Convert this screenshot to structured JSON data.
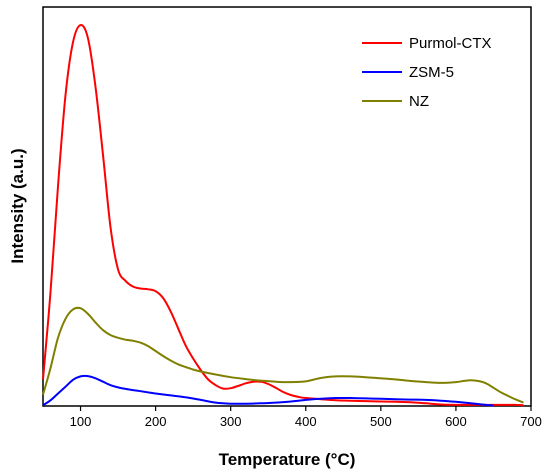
{
  "chart_data": {
    "type": "line",
    "xlabel": "Temperature (°C)",
    "ylabel": "Intensity (a.u.)",
    "xlim": [
      50,
      700
    ],
    "ylim": [
      0,
      100
    ],
    "xticks": [
      100,
      200,
      300,
      400,
      500,
      600,
      700
    ],
    "grid": false,
    "legend_position": "top-right",
    "series": [
      {
        "name": "Purmol-CTX",
        "color": "#ff0000",
        "points": [
          [
            50,
            7
          ],
          [
            60,
            30
          ],
          [
            70,
            58
          ],
          [
            80,
            82
          ],
          [
            90,
            96
          ],
          [
            100,
            100.5
          ],
          [
            110,
            97
          ],
          [
            120,
            84
          ],
          [
            130,
            66
          ],
          [
            140,
            47
          ],
          [
            150,
            36
          ],
          [
            160,
            33
          ],
          [
            170,
            31.5
          ],
          [
            180,
            31
          ],
          [
            190,
            30.8
          ],
          [
            200,
            30.3
          ],
          [
            210,
            28.5
          ],
          [
            220,
            25
          ],
          [
            230,
            20.5
          ],
          [
            240,
            16
          ],
          [
            250,
            12.5
          ],
          [
            260,
            9.5
          ],
          [
            270,
            7
          ],
          [
            280,
            5.5
          ],
          [
            290,
            4.6
          ],
          [
            300,
            4.7
          ],
          [
            310,
            5.3
          ],
          [
            320,
            6
          ],
          [
            330,
            6.4
          ],
          [
            340,
            6.4
          ],
          [
            350,
            5.8
          ],
          [
            360,
            4.8
          ],
          [
            370,
            3.7
          ],
          [
            380,
            2.9
          ],
          [
            390,
            2.4
          ],
          [
            400,
            2.1
          ],
          [
            420,
            1.8
          ],
          [
            440,
            1.5
          ],
          [
            460,
            1.4
          ],
          [
            480,
            1.3
          ],
          [
            500,
            1.2
          ],
          [
            520,
            1.1
          ],
          [
            540,
            1.0
          ],
          [
            560,
            0.7
          ],
          [
            580,
            0.4
          ],
          [
            600,
            0.3
          ],
          [
            620,
            0.3
          ],
          [
            640,
            0.3
          ],
          [
            660,
            0.3
          ],
          [
            680,
            0.3
          ],
          [
            690,
            0.2
          ]
        ]
      },
      {
        "name": "ZSM-5",
        "color": "#0000ff",
        "points": [
          [
            50,
            0.2
          ],
          [
            60,
            1.5
          ],
          [
            70,
            3.3
          ],
          [
            80,
            5.1
          ],
          [
            90,
            6.9
          ],
          [
            100,
            7.8
          ],
          [
            110,
            7.9
          ],
          [
            120,
            7.3
          ],
          [
            130,
            6.4
          ],
          [
            140,
            5.5
          ],
          [
            150,
            4.9
          ],
          [
            160,
            4.5
          ],
          [
            170,
            4.2
          ],
          [
            180,
            3.9
          ],
          [
            190,
            3.6
          ],
          [
            200,
            3.3
          ],
          [
            220,
            2.8
          ],
          [
            240,
            2.3
          ],
          [
            260,
            1.6
          ],
          [
            280,
            0.9
          ],
          [
            300,
            0.6
          ],
          [
            320,
            0.6
          ],
          [
            340,
            0.7
          ],
          [
            360,
            0.9
          ],
          [
            380,
            1.2
          ],
          [
            400,
            1.6
          ],
          [
            420,
            1.9
          ],
          [
            440,
            2.1
          ],
          [
            460,
            2.1
          ],
          [
            480,
            2.0
          ],
          [
            500,
            1.9
          ],
          [
            520,
            1.8
          ],
          [
            540,
            1.7
          ],
          [
            560,
            1.6
          ],
          [
            580,
            1.4
          ],
          [
            600,
            1.1
          ],
          [
            620,
            0.7
          ],
          [
            640,
            0.3
          ],
          [
            650,
            0.1
          ]
        ]
      },
      {
        "name": "NZ",
        "color": "#808000",
        "points": [
          [
            50,
            3
          ],
          [
            60,
            10
          ],
          [
            70,
            18
          ],
          [
            80,
            23
          ],
          [
            90,
            25.5
          ],
          [
            100,
            25.8
          ],
          [
            110,
            24.3
          ],
          [
            120,
            22
          ],
          [
            130,
            20
          ],
          [
            140,
            18.7
          ],
          [
            150,
            18
          ],
          [
            160,
            17.5
          ],
          [
            170,
            17.2
          ],
          [
            180,
            16.7
          ],
          [
            190,
            15.8
          ],
          [
            200,
            14.5
          ],
          [
            210,
            13.2
          ],
          [
            220,
            12
          ],
          [
            230,
            11
          ],
          [
            240,
            10.3
          ],
          [
            250,
            9.6
          ],
          [
            260,
            9.1
          ],
          [
            280,
            8.3
          ],
          [
            300,
            7.6
          ],
          [
            320,
            7.1
          ],
          [
            340,
            6.7
          ],
          [
            360,
            6.4
          ],
          [
            380,
            6.3
          ],
          [
            400,
            6.5
          ],
          [
            420,
            7.4
          ],
          [
            440,
            7.8
          ],
          [
            460,
            7.8
          ],
          [
            480,
            7.6
          ],
          [
            500,
            7.3
          ],
          [
            520,
            7.0
          ],
          [
            540,
            6.6
          ],
          [
            560,
            6.3
          ],
          [
            580,
            6.1
          ],
          [
            600,
            6.3
          ],
          [
            610,
            6.6
          ],
          [
            620,
            6.8
          ],
          [
            630,
            6.6
          ],
          [
            640,
            6.0
          ],
          [
            650,
            4.8
          ],
          [
            660,
            3.6
          ],
          [
            670,
            2.6
          ],
          [
            680,
            1.7
          ],
          [
            690,
            0.9
          ]
        ]
      }
    ]
  }
}
